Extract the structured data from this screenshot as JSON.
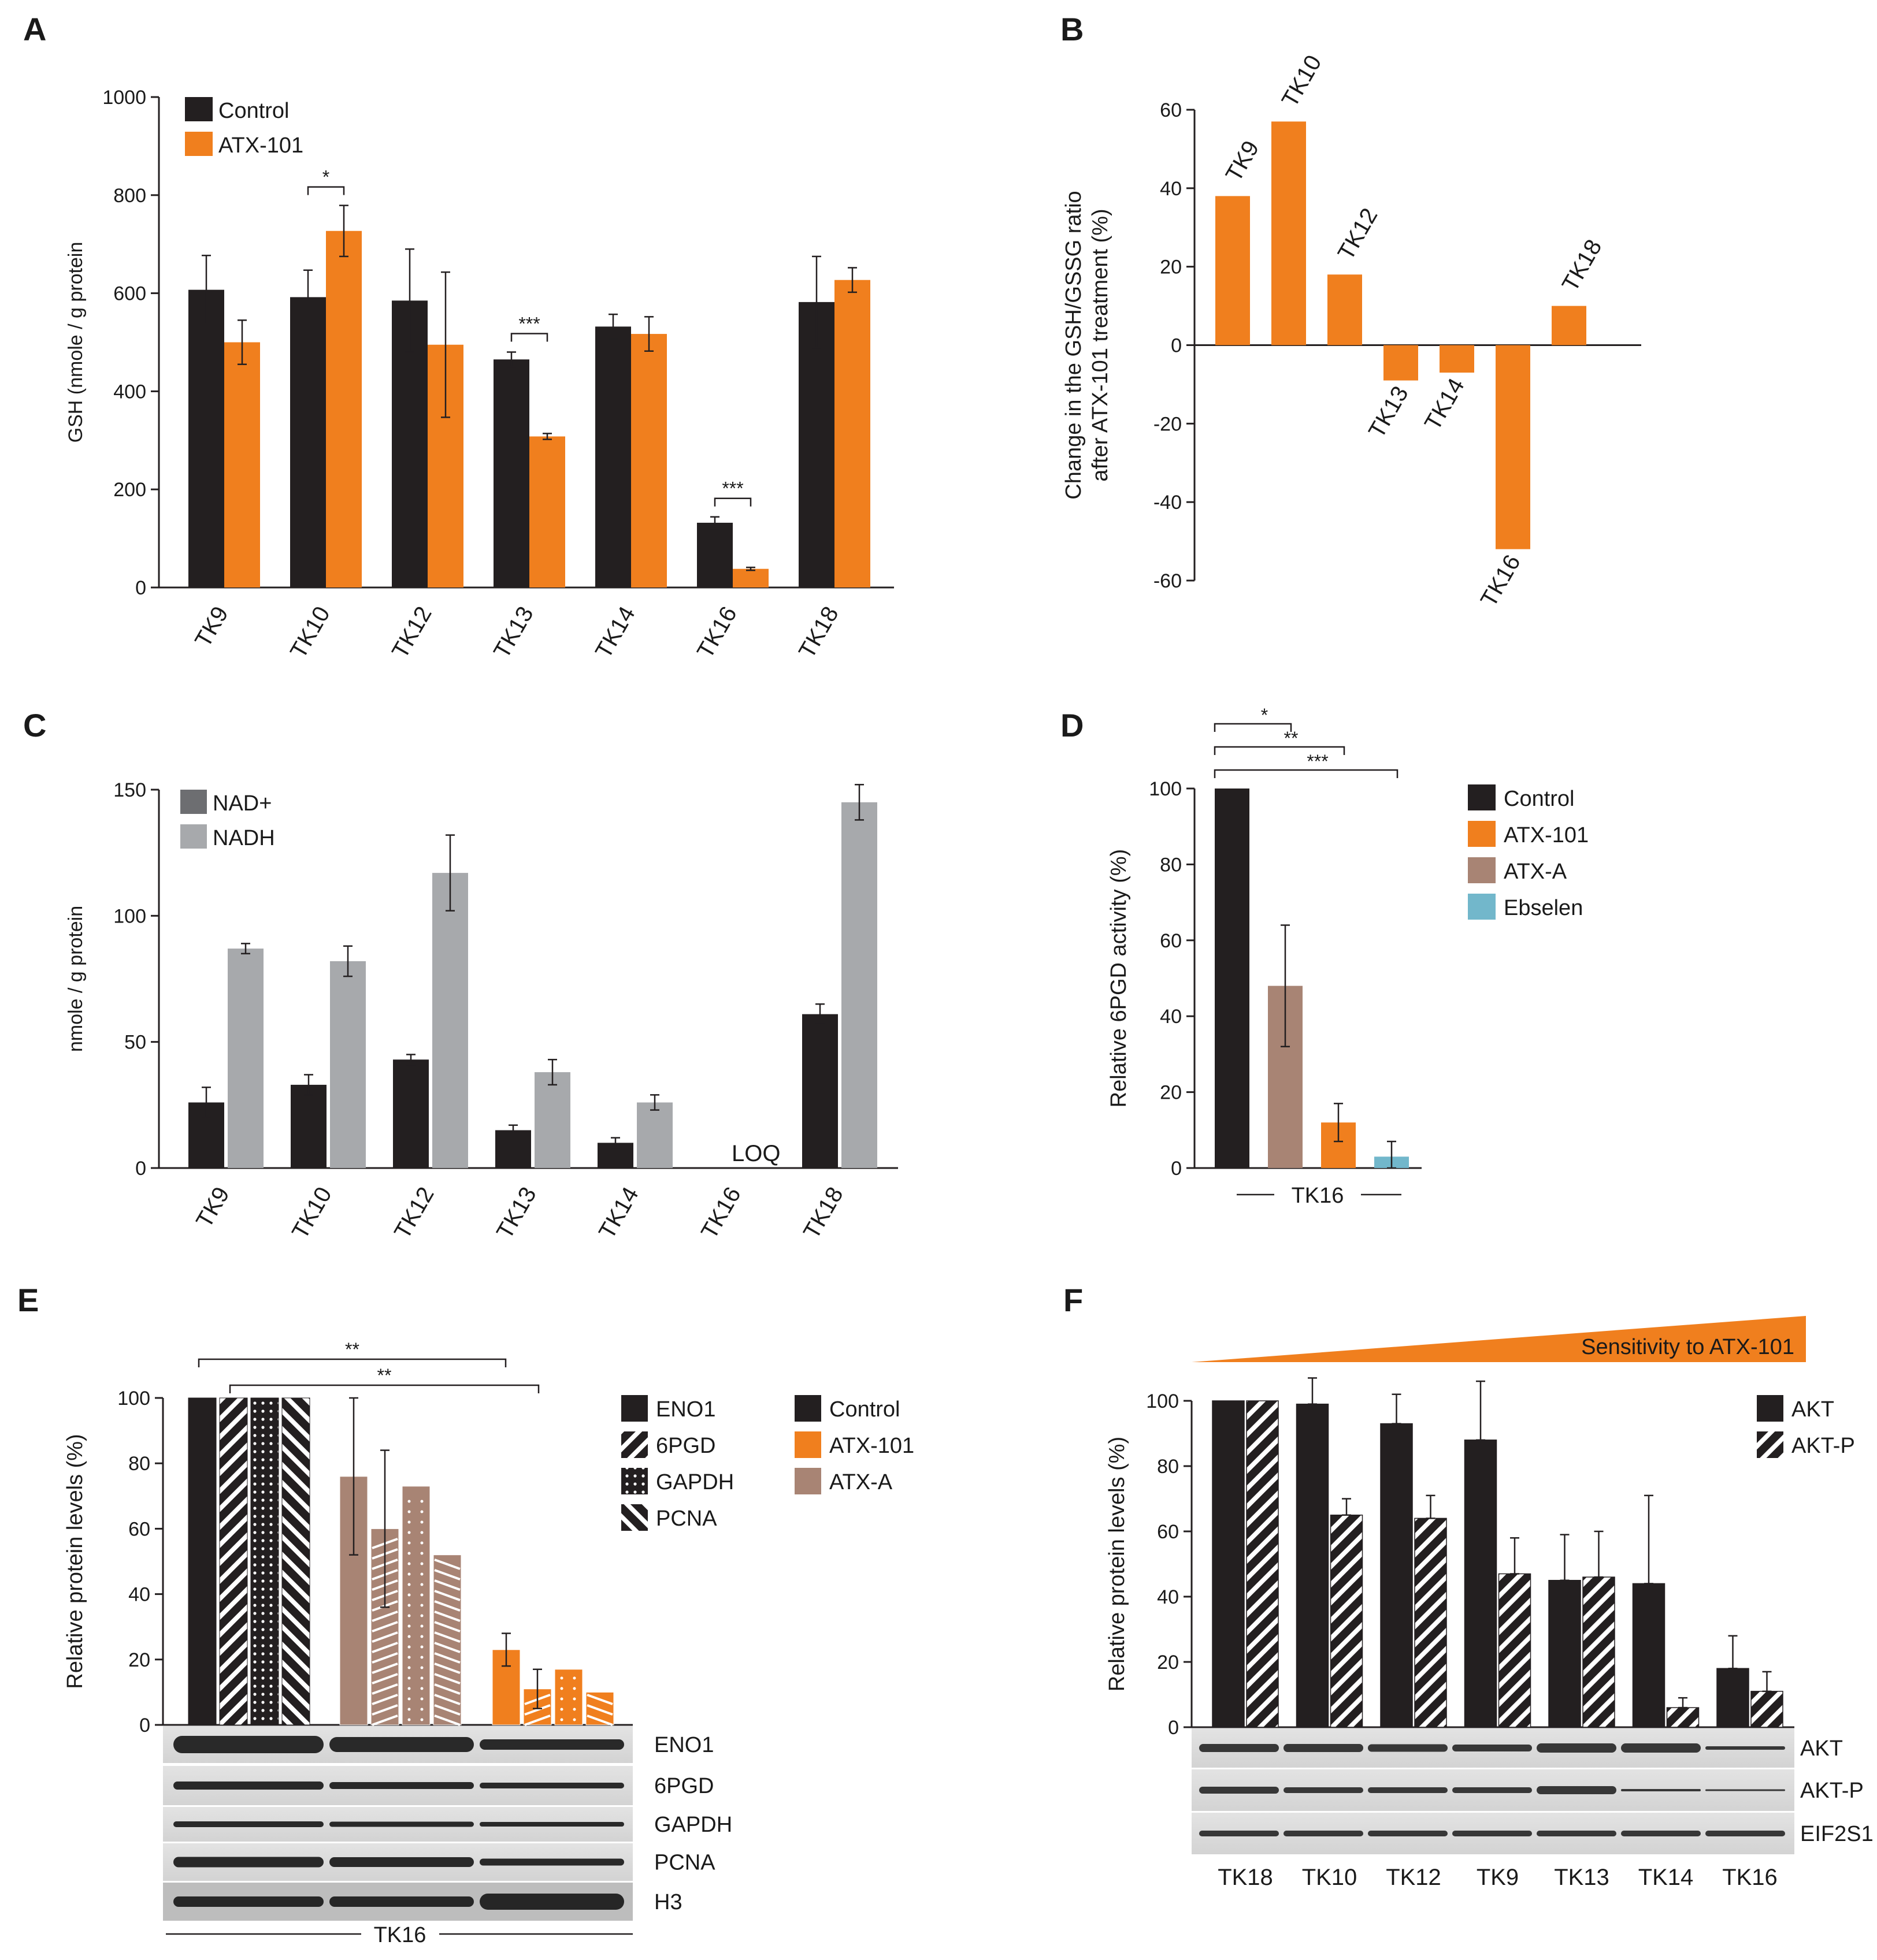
{
  "chart_data": [
    {
      "panel": "A",
      "type": "bar",
      "ylabel": "GSH (nmole / g protein",
      "ylim": [
        0,
        1000
      ],
      "yticks": [
        0,
        200,
        400,
        600,
        800,
        1000
      ],
      "categories": [
        "TK9",
        "TK10",
        "TK12",
        "TK13",
        "TK14",
        "TK16",
        "TK18"
      ],
      "series": [
        {
          "name": "Control",
          "color": "#231f20",
          "values": [
            607,
            592,
            585,
            465,
            532,
            132,
            582
          ],
          "errors": [
            70,
            55,
            105,
            15,
            25,
            12,
            93
          ]
        },
        {
          "name": "ATX-101",
          "color": "#f07f1e",
          "values": [
            500,
            727,
            495,
            308,
            517,
            38,
            627
          ],
          "errors": [
            45,
            52,
            148,
            6,
            35,
            3,
            25
          ]
        }
      ],
      "significance": [
        {
          "category": "TK10",
          "label": "*"
        },
        {
          "category": "TK13",
          "label": "***"
        },
        {
          "category": "TK16",
          "label": "***"
        }
      ]
    },
    {
      "panel": "B",
      "type": "bar",
      "ylabel_lines": [
        "Change in the GSH/GSSG ratio",
        "after ATX-101 treatment (%)"
      ],
      "ylim": [
        -60,
        60
      ],
      "yticks": [
        60,
        40,
        20,
        0,
        -20,
        -40,
        -60
      ],
      "categories": [
        "TK9",
        "TK10",
        "TK12",
        "TK13",
        "TK14",
        "TK16",
        "TK18"
      ],
      "values": [
        38,
        57,
        18,
        -9,
        -7,
        -52,
        10
      ],
      "color": "#f07f1e"
    },
    {
      "panel": "C",
      "type": "bar",
      "ylabel": "nmole / g protein",
      "ylim": [
        0,
        150
      ],
      "yticks": [
        0,
        50,
        100,
        150
      ],
      "categories": [
        "TK9",
        "TK10",
        "TK12",
        "TK13",
        "TK14",
        "TK16",
        "TK18"
      ],
      "series": [
        {
          "name": "NAD+",
          "legend_color": "#6d6e71",
          "color": "#231f20",
          "values": [
            26,
            33,
            43,
            15,
            10,
            null,
            61
          ],
          "errors": [
            6,
            4,
            2,
            2,
            2,
            null,
            4
          ]
        },
        {
          "name": "NADH",
          "color": "#a7a9ac",
          "values": [
            87,
            82,
            117,
            38,
            26,
            null,
            145
          ],
          "errors": [
            2,
            6,
            15,
            5,
            3,
            null,
            7
          ]
        }
      ],
      "annotation": {
        "category": "TK16",
        "text": "LOQ"
      }
    },
    {
      "panel": "D",
      "type": "bar",
      "ylabel": "Relative 6PGD activity (%)",
      "ylim": [
        0,
        100
      ],
      "yticks": [
        0,
        20,
        40,
        60,
        80,
        100
      ],
      "group_label": "TK16",
      "categories": [
        "Control",
        "ATX-A",
        "ATX-101",
        "Ebselen"
      ],
      "values": [
        100,
        48,
        12,
        3
      ],
      "errors": [
        0,
        16,
        5,
        4
      ],
      "colors": [
        "#231f20",
        "#a88474",
        "#f07f1e",
        "#72b7cb"
      ],
      "legend": [
        {
          "name": "Control",
          "color": "#231f20"
        },
        {
          "name": "ATX-101",
          "color": "#f07f1e"
        },
        {
          "name": "ATX-A",
          "color": "#a88474"
        },
        {
          "name": "Ebselen",
          "color": "#72b7cb"
        }
      ],
      "significance": [
        "*",
        "**",
        "***"
      ]
    },
    {
      "panel": "E",
      "type": "bar",
      "ylabel": "Relative protein levels (%)",
      "ylim": [
        0,
        100
      ],
      "yticks": [
        0,
        20,
        40,
        60,
        80,
        100
      ],
      "group_label": "TK16",
      "proteins": [
        "ENO1",
        "6PGD",
        "GAPDH",
        "PCNA"
      ],
      "patterns": [
        "solid",
        "hatch",
        "dots",
        "backhatch"
      ],
      "treatments": [
        {
          "name": "Control",
          "color": "#231f20",
          "values": [
            100,
            100,
            100,
            100
          ],
          "errors": [
            0,
            0,
            0,
            0
          ]
        },
        {
          "name": "ATX-A",
          "color": "#a88474",
          "values": [
            76,
            60,
            73,
            52
          ],
          "errors": [
            24,
            24,
            0,
            0
          ]
        },
        {
          "name": "ATX-101",
          "color": "#f07f1e",
          "values": [
            23,
            11,
            17,
            10
          ],
          "errors": [
            5,
            6,
            0,
            0
          ]
        }
      ],
      "legend_treatments": [
        "Control",
        "ATX-101",
        "ATX-A"
      ],
      "blot_labels": [
        "ENO1",
        "6PGD",
        "GAPDH",
        "PCNA",
        "H3"
      ],
      "significance": [
        "**",
        "**"
      ]
    },
    {
      "panel": "F",
      "type": "bar",
      "ylabel": "Relative protein levels (%)",
      "ylim": [
        0,
        100
      ],
      "yticks": [
        0,
        20,
        40,
        60,
        80,
        100
      ],
      "gradient_label": "Sensitivity to ATX-101",
      "categories": [
        "TK18",
        "TK10",
        "TK12",
        "TK9",
        "TK13",
        "TK14",
        "TK16"
      ],
      "series": [
        {
          "name": "AKT",
          "pattern": "solid",
          "values": [
            100,
            99,
            93,
            88,
            45,
            44,
            18
          ],
          "errors": [
            0,
            8,
            9,
            18,
            14,
            27,
            10
          ]
        },
        {
          "name": "AKT-P",
          "pattern": "hatch",
          "values": [
            100,
            65,
            64,
            47,
            46,
            6,
            11
          ],
          "errors": [
            0,
            5,
            7,
            11,
            14,
            3,
            6
          ]
        }
      ],
      "blot_labels": [
        "AKT",
        "AKT-P",
        "EIF2S1"
      ]
    }
  ],
  "panel_letters": [
    "A",
    "B",
    "C",
    "D",
    "E",
    "F"
  ]
}
